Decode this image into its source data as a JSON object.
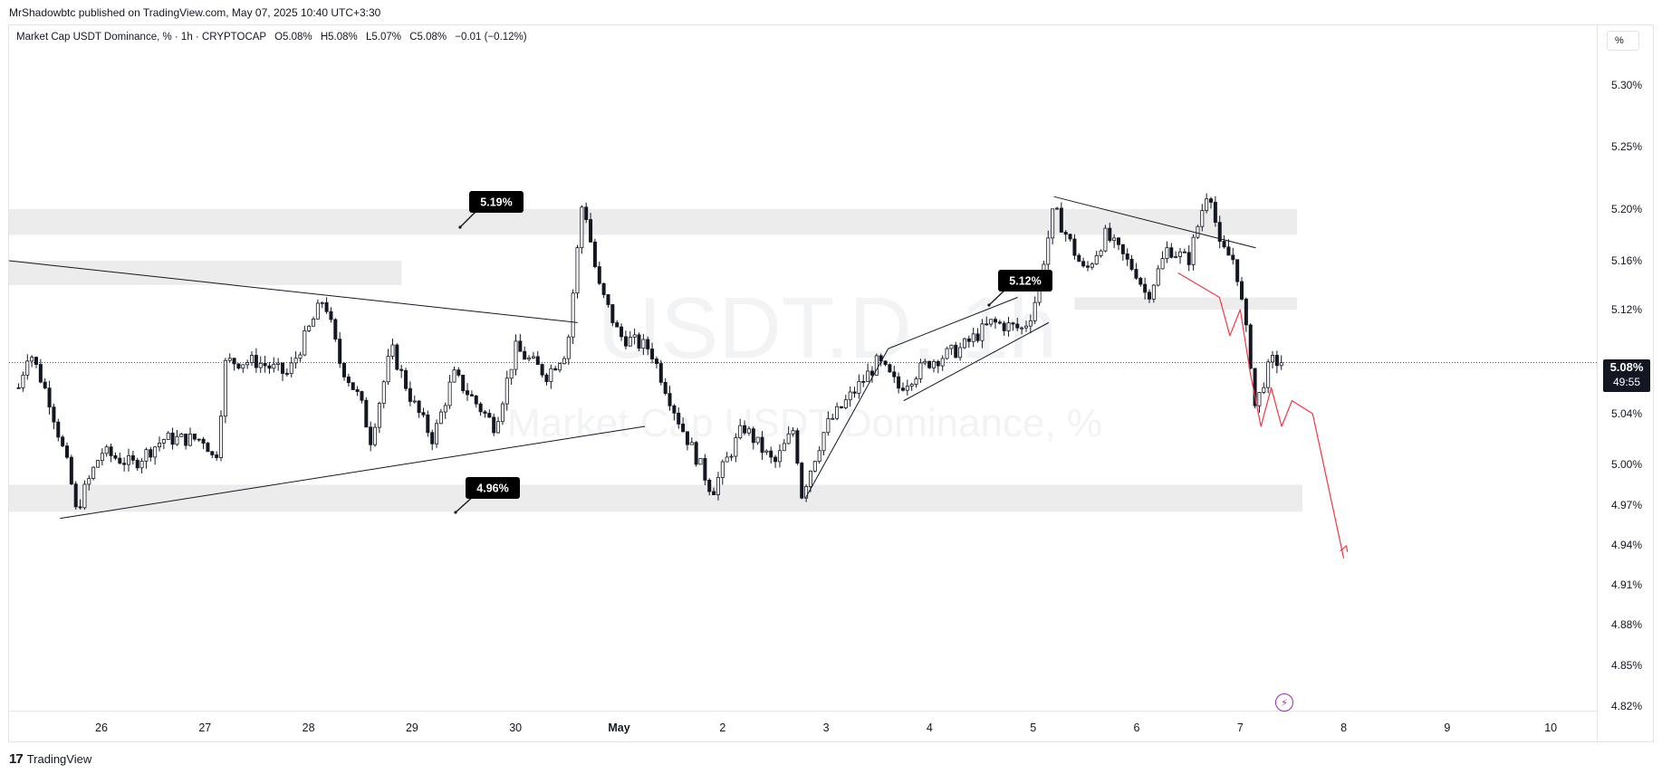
{
  "publish_line": "MrShadowbtc published on TradingView.com, May 07, 2025 10:40 UTC+3:30",
  "header": {
    "symbol": "Market Cap USDT Dominance, % · 1h · CRYPTOCAP",
    "open": "O5.08%",
    "high": "H5.08%",
    "low": "L5.07%",
    "close": "C5.08%",
    "change": "−0.01 (−0.12%)"
  },
  "scale_button": "%",
  "watermark": {
    "symbol": "USDT.D, 1h",
    "name": "Market Cap USDT Dominance, %"
  },
  "logo_text": "TradingView",
  "last_price": {
    "value": "5.08%",
    "countdown": "49:55"
  },
  "colors": {
    "up": "#089981",
    "down": "#131722",
    "projection": "#f23645",
    "zone": "#ececec",
    "accent": "#9c27b0"
  },
  "chart_data": {
    "type": "candlestick",
    "title": "",
    "xlabel": "",
    "ylabel": "",
    "ylim": [
      4.81,
      5.32
    ],
    "x_ticks": [
      "26",
      "27",
      "28",
      "29",
      "30",
      "May",
      "2",
      "3",
      "4",
      "5",
      "6",
      "7",
      "8",
      "9",
      "10"
    ],
    "x_tick_days": [
      26,
      27,
      28,
      29,
      30,
      31,
      32,
      33,
      34,
      35,
      36,
      37,
      38,
      39,
      40
    ],
    "y_ticks": [
      "5.30%",
      "5.25%",
      "5.20%",
      "5.16%",
      "5.12%",
      "5.08%",
      "5.04%",
      "5.00%",
      "4.97%",
      "4.94%",
      "4.91%",
      "4.88%",
      "4.85%",
      "4.82%"
    ],
    "y_tick_values": [
      5.3,
      5.25,
      5.2,
      5.16,
      5.12,
      5.08,
      5.04,
      5.0,
      4.97,
      4.94,
      4.91,
      4.88,
      4.85,
      4.82
    ],
    "price_path": [
      [
        25.2,
        5.06
      ],
      [
        25.3,
        5.09
      ],
      [
        25.5,
        5.05
      ],
      [
        25.7,
        4.99
      ],
      [
        25.75,
        4.965
      ],
      [
        26.0,
        5.01
      ],
      [
        26.3,
        5.0
      ],
      [
        26.6,
        5.02
      ],
      [
        27.0,
        5.02
      ],
      [
        27.1,
        5.0
      ],
      [
        27.2,
        5.08
      ],
      [
        27.5,
        5.08
      ],
      [
        27.8,
        5.07
      ],
      [
        28.15,
        5.13
      ],
      [
        28.3,
        5.08
      ],
      [
        28.5,
        5.05
      ],
      [
        28.6,
        5.02
      ],
      [
        28.8,
        5.09
      ],
      [
        29.0,
        5.05
      ],
      [
        29.2,
        5.02
      ],
      [
        29.4,
        5.07
      ],
      [
        29.6,
        5.05
      ],
      [
        29.8,
        5.03
      ],
      [
        30.0,
        5.09
      ],
      [
        30.3,
        5.07
      ],
      [
        30.5,
        5.09
      ],
      [
        30.65,
        5.21
      ],
      [
        30.8,
        5.14
      ],
      [
        31.0,
        5.1
      ],
      [
        31.3,
        5.09
      ],
      [
        31.6,
        5.03
      ],
      [
        31.9,
        4.98
      ],
      [
        32.2,
        5.03
      ],
      [
        32.5,
        5.0
      ],
      [
        32.7,
        5.03
      ],
      [
        32.75,
        4.975
      ],
      [
        33.0,
        5.03
      ],
      [
        33.2,
        5.05
      ],
      [
        33.5,
        5.08
      ],
      [
        33.7,
        5.06
      ],
      [
        34.0,
        5.08
      ],
      [
        34.3,
        5.09
      ],
      [
        34.6,
        5.11
      ],
      [
        34.9,
        5.105
      ],
      [
        35.0,
        5.12
      ],
      [
        35.2,
        5.2
      ],
      [
        35.5,
        5.15
      ],
      [
        35.7,
        5.18
      ],
      [
        36.0,
        5.15
      ],
      [
        36.1,
        5.13
      ],
      [
        36.3,
        5.17
      ],
      [
        36.5,
        5.16
      ],
      [
        36.7,
        5.22
      ],
      [
        36.8,
        5.17
      ],
      [
        36.95,
        5.16
      ],
      [
        37.1,
        5.08
      ],
      [
        37.15,
        5.04
      ],
      [
        37.2,
        5.06
      ],
      [
        37.3,
        5.08
      ],
      [
        37.4,
        5.08
      ]
    ],
    "levels": [
      {
        "label": "5.19%",
        "value": 5.19
      },
      {
        "label": "4.96%",
        "value": 4.96
      },
      {
        "label": "5.12%",
        "value": 5.12
      }
    ],
    "zones": [
      {
        "from_day": 25.0,
        "to_day": 37.55,
        "low": 5.18,
        "high": 5.2
      },
      {
        "from_day": 25.0,
        "to_day": 28.9,
        "low": 5.14,
        "high": 5.16
      },
      {
        "from_day": 25.0,
        "to_day": 37.6,
        "low": 4.965,
        "high": 4.985
      },
      {
        "from_day": 35.4,
        "to_day": 37.55,
        "low": 5.12,
        "high": 5.13
      }
    ],
    "trendlines": [
      [
        [
          25.0,
          5.16
        ],
        [
          30.6,
          5.11
        ]
      ],
      [
        [
          25.6,
          4.96
        ],
        [
          31.25,
          5.03
        ]
      ],
      [
        [
          32.8,
          4.975
        ],
        [
          33.6,
          5.09
        ]
      ],
      [
        [
          33.6,
          5.09
        ],
        [
          34.85,
          5.13
        ]
      ],
      [
        [
          33.75,
          5.05
        ],
        [
          35.15,
          5.11
        ]
      ],
      [
        [
          35.2,
          5.21
        ],
        [
          37.15,
          5.17
        ]
      ]
    ],
    "projection": [
      [
        36.4,
        5.15
      ],
      [
        36.6,
        5.14
      ],
      [
        36.8,
        5.13
      ],
      [
        36.9,
        5.1
      ],
      [
        37.0,
        5.12
      ],
      [
        37.1,
        5.07
      ],
      [
        37.2,
        5.03
      ],
      [
        37.3,
        5.06
      ],
      [
        37.4,
        5.03
      ],
      [
        37.5,
        5.05
      ],
      [
        37.7,
        5.04
      ],
      [
        38.0,
        4.93
      ]
    ]
  }
}
